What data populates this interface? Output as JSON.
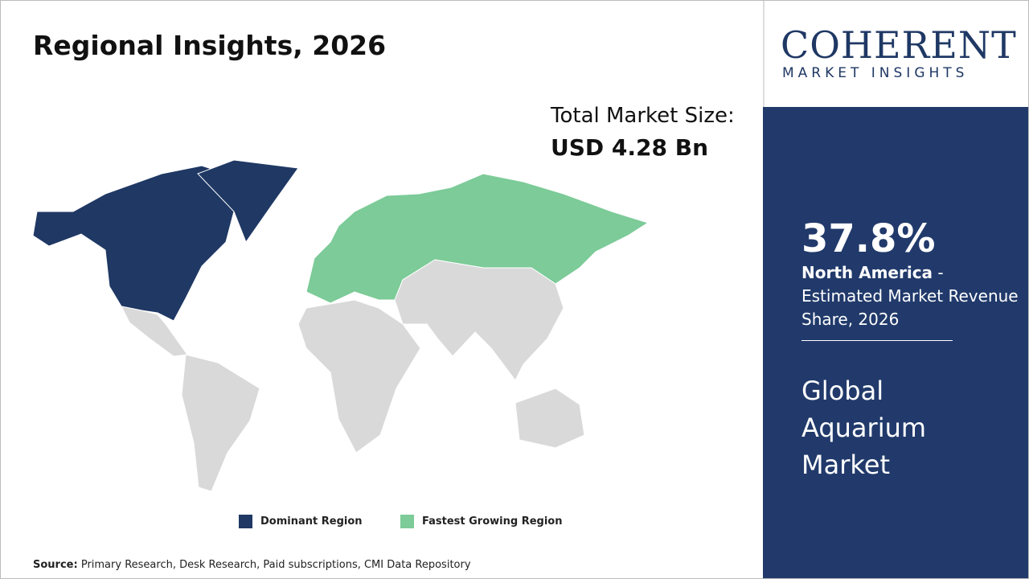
{
  "header": {
    "title": "Regional Insights, 2026"
  },
  "market_size": {
    "label": "Total Market Size:",
    "value": "USD 4.28 Bn"
  },
  "legend": [
    {
      "label": "Dominant Region",
      "color": "#1f3864"
    },
    {
      "label": "Fastest Growing Region",
      "color": "#7ccb98"
    }
  ],
  "source": {
    "label": "Source:",
    "text": "Primary Research, Desk Research, Paid subscriptions, CMI Data Repository"
  },
  "logo": {
    "name": "COHERENT",
    "tagline": "MARKET INSIGHTS"
  },
  "highlight": {
    "share": "37.8%",
    "region": "North America",
    "description": " - Estimated Market Revenue Share, 2026"
  },
  "market": {
    "name": "Global Aquarium Market"
  }
}
